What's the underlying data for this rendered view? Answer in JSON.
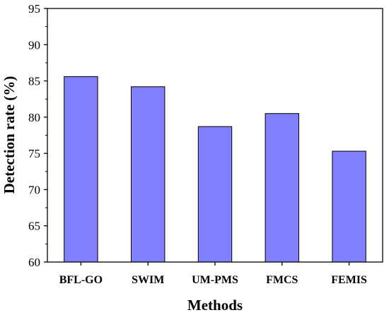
{
  "chart_data": {
    "type": "bar",
    "title": "",
    "xlabel": "Methods",
    "ylabel": "Detection rate (%)",
    "categories": [
      "BFL-GO",
      "SWIM",
      "UM-PMS",
      "FMCS",
      "FEMIS"
    ],
    "values": [
      85.6,
      84.2,
      78.7,
      80.5,
      75.3
    ],
    "ylim": [
      60,
      95
    ],
    "yticks": [
      60,
      65,
      70,
      75,
      80,
      85,
      90,
      95
    ],
    "bar_color": "#8080ff",
    "bar_edge_color": "#000000",
    "grid": false,
    "legend": "none"
  }
}
